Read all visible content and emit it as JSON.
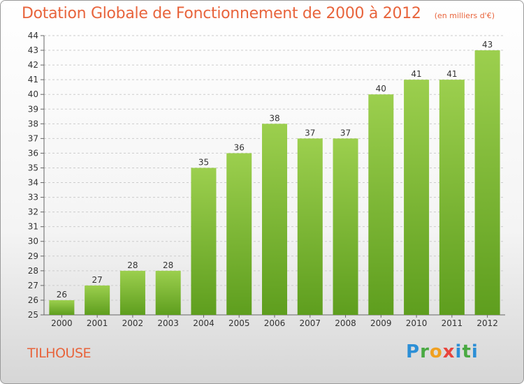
{
  "title": "Dotation Globale de Fonctionnement de 2000 à 2012",
  "subtitle": "(en milliers d'€)",
  "commune": "TILHOUSE",
  "brand": {
    "parts": [
      "P",
      "r",
      "o",
      "x",
      "i",
      "t",
      "i"
    ]
  },
  "colors": {
    "title": "#e8643c",
    "bar_top": "#9ccf4e",
    "bar_bottom": "#5e9e1e",
    "grid": "#cccccc"
  },
  "chart_data": {
    "type": "bar",
    "categories": [
      "2000",
      "2001",
      "2002",
      "2003",
      "2004",
      "2005",
      "2006",
      "2007",
      "2008",
      "2009",
      "2010",
      "2011",
      "2012"
    ],
    "values": [
      26,
      27,
      28,
      28,
      35,
      36,
      38,
      37,
      37,
      40,
      41,
      41,
      43
    ],
    "ylim": [
      25,
      44
    ],
    "yticks": [
      25,
      26,
      27,
      28,
      29,
      30,
      31,
      32,
      33,
      34,
      35,
      36,
      37,
      38,
      39,
      40,
      41,
      42,
      43,
      44
    ],
    "grid": true
  }
}
